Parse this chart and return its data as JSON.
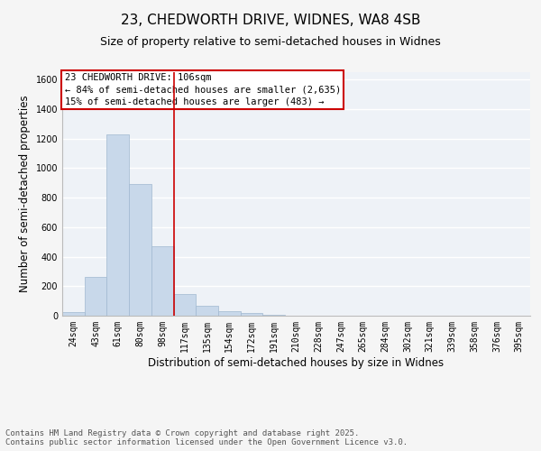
{
  "title_line1": "23, CHEDWORTH DRIVE, WIDNES, WA8 4SB",
  "title_line2": "Size of property relative to semi-detached houses in Widnes",
  "xlabel": "Distribution of semi-detached houses by size in Widnes",
  "ylabel": "Number of semi-detached properties",
  "categories": [
    "24sqm",
    "43sqm",
    "61sqm",
    "80sqm",
    "98sqm",
    "117sqm",
    "135sqm",
    "154sqm",
    "172sqm",
    "191sqm",
    "210sqm",
    "228sqm",
    "247sqm",
    "265sqm",
    "284sqm",
    "302sqm",
    "321sqm",
    "339sqm",
    "358sqm",
    "376sqm",
    "395sqm"
  ],
  "values": [
    25,
    263,
    1230,
    893,
    470,
    148,
    70,
    28,
    18,
    8,
    3,
    0,
    0,
    0,
    0,
    0,
    0,
    0,
    0,
    0,
    0
  ],
  "bar_color": "#c8d8ea",
  "bar_edge_color": "#a0b8d0",
  "vline_x": 4.5,
  "annotation_title": "23 CHEDWORTH DRIVE: 106sqm",
  "annotation_line1": "← 84% of semi-detached houses are smaller (2,635)",
  "annotation_line2": "15% of semi-detached houses are larger (483) →",
  "annotation_box_color": "#cc0000",
  "ylim": [
    0,
    1650
  ],
  "yticks": [
    0,
    200,
    400,
    600,
    800,
    1000,
    1200,
    1400,
    1600
  ],
  "footer_line1": "Contains HM Land Registry data © Crown copyright and database right 2025.",
  "footer_line2": "Contains public sector information licensed under the Open Government Licence v3.0.",
  "background_color": "#eef2f7",
  "grid_color": "#ffffff",
  "title_fontsize": 11,
  "subtitle_fontsize": 9,
  "axis_label_fontsize": 8.5,
  "tick_fontsize": 7,
  "annotation_fontsize": 7.5,
  "footer_fontsize": 6.5
}
